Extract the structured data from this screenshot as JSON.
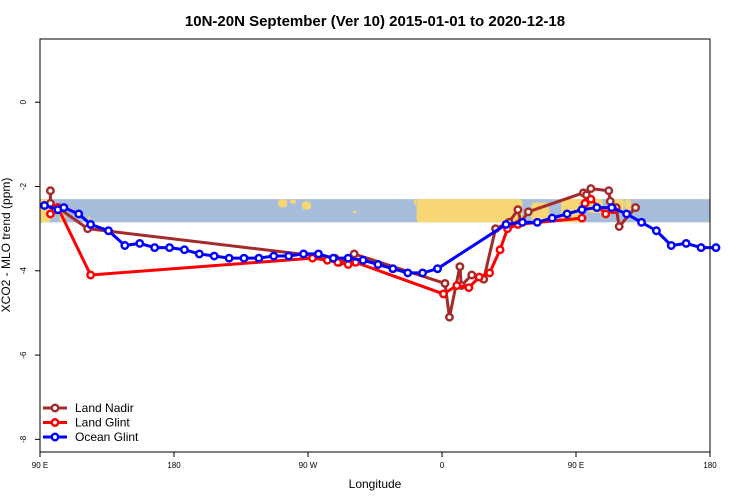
{
  "chart_data": {
    "type": "line",
    "title": "10N-20N September (Ver 10)   2015-01-01 to 2020-12-18",
    "xlabel": "Longitude",
    "ylabel": "XCO2 - MLO trend (ppm)",
    "xlim": [
      90,
      540
    ],
    "ylim": [
      -8.3,
      1.5
    ],
    "x_ticks": [
      {
        "value": 90,
        "label": "90 E"
      },
      {
        "value": 180,
        "label": "180"
      },
      {
        "value": 270,
        "label": "90 W"
      },
      {
        "value": 360,
        "label": "0"
      },
      {
        "value": 450,
        "label": "90 E"
      },
      {
        "value": 540,
        "label": "180"
      }
    ],
    "y_ticks": [
      {
        "value": 0,
        "label": "0"
      },
      {
        "value": -2,
        "label": "-2"
      },
      {
        "value": -4,
        "label": "-4"
      },
      {
        "value": -6,
        "label": "-6"
      },
      {
        "value": -8,
        "label": "-8"
      }
    ],
    "map_band": {
      "lat_range": [
        10,
        20
      ],
      "y_range": [
        -2.3,
        -2.85
      ],
      "ocean_color": "#a6bddb",
      "land_color": "#f7d774"
    },
    "series": [
      {
        "name": "Land Nadir",
        "color": "#a52a2a",
        "x": [
          97,
          97,
          102,
          122,
          288,
          291,
          296,
          301,
          362,
          365,
          372,
          373,
          380,
          388,
          396,
          405,
          411,
          413,
          418,
          455,
          457,
          460,
          472,
          473,
          477,
          479,
          490
        ],
        "y": [
          -2.1,
          -2.4,
          -2.5,
          -3.0,
          -3.7,
          -3.8,
          -3.75,
          -3.6,
          -4.3,
          -5.1,
          -3.9,
          -4.35,
          -4.1,
          -4.2,
          -3.0,
          -2.85,
          -2.55,
          -2.85,
          -2.6,
          -2.15,
          -2.2,
          -2.05,
          -2.1,
          -2.35,
          -2.5,
          -2.95,
          -2.5
        ]
      },
      {
        "name": "Land Glint",
        "color": "#ff0000",
        "x": [
          97,
          100,
          102,
          124,
          273,
          283,
          290,
          297,
          302,
          361,
          370,
          378,
          385,
          392,
          399,
          404,
          411,
          454,
          456,
          460,
          470,
          475
        ],
        "y": [
          -2.65,
          -2.55,
          -2.5,
          -4.1,
          -3.7,
          -3.75,
          -3.8,
          -3.85,
          -3.8,
          -4.55,
          -4.35,
          -4.4,
          -4.15,
          -4.05,
          -3.5,
          -3.0,
          -2.9,
          -2.75,
          -2.4,
          -2.3,
          -2.65,
          -2.55
        ]
      },
      {
        "name": "Ocean Glint",
        "color": "#0000ff",
        "x": [
          93,
          102,
          106,
          116,
          124,
          136,
          147,
          157,
          167,
          177,
          187,
          197,
          207,
          217,
          227,
          237,
          247,
          257,
          267,
          277,
          287,
          297,
          307,
          317,
          327,
          337,
          347,
          357,
          403,
          414,
          424,
          434,
          444,
          454,
          464,
          474,
          484,
          494,
          504,
          514,
          524,
          534,
          544
        ],
        "y": [
          -2.45,
          -2.55,
          -2.5,
          -2.65,
          -2.9,
          -3.05,
          -3.4,
          -3.35,
          -3.45,
          -3.45,
          -3.5,
          -3.6,
          -3.65,
          -3.7,
          -3.7,
          -3.7,
          -3.65,
          -3.65,
          -3.6,
          -3.6,
          -3.7,
          -3.7,
          -3.75,
          -3.85,
          -3.95,
          -4.05,
          -4.05,
          -3.95,
          -2.9,
          -2.85,
          -2.85,
          -2.75,
          -2.65,
          -2.55,
          -2.5,
          -2.5,
          -2.65,
          -2.85,
          -3.05,
          -3.4,
          -3.35,
          -3.45,
          -3.45
        ]
      }
    ],
    "legend": {
      "position": "bottom-left",
      "entries": [
        "Land Nadir",
        "Land Glint",
        "Ocean Glint"
      ]
    }
  }
}
